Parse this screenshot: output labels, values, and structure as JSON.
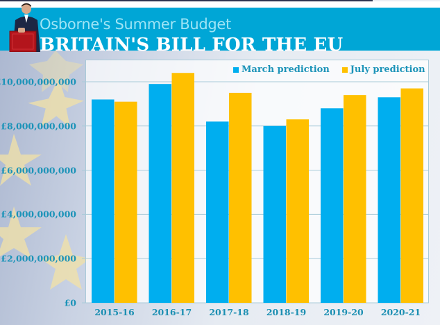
{
  "header": {
    "subtitle": "Osborne's Summer Budget",
    "title": "BRITAIN'S BILL FOR THE EU",
    "banner_color": "#00a6d6"
  },
  "chart_data": {
    "type": "bar",
    "title": "BRITAIN'S BILL FOR THE EU",
    "subtitle": "Osborne's Summer Budget",
    "xlabel": "",
    "ylabel": "",
    "categories": [
      "2015-16",
      "2016-17",
      "2017-18",
      "2018-19",
      "2019-20",
      "2020-21"
    ],
    "series": [
      {
        "name": "March prediction",
        "color": "#00aeef",
        "values": [
          9200000000,
          9900000000,
          8200000000,
          8000000000,
          8800000000,
          9300000000
        ]
      },
      {
        "name": "July prediction",
        "color": "#ffc000",
        "values": [
          9100000000,
          10400000000,
          9500000000,
          8300000000,
          9400000000,
          9700000000
        ]
      }
    ],
    "ylim": [
      0,
      11000000000
    ],
    "yticks": [
      0,
      2000000000,
      4000000000,
      6000000000,
      8000000000,
      10000000000
    ],
    "ytick_labels": [
      "£0",
      "£2,000,000,000",
      "£4,000,000,000",
      "£6,000,000,000",
      "£8,000,000,000",
      "£10,000,000,000"
    ],
    "grid": true,
    "legend_position": "top-right"
  }
}
